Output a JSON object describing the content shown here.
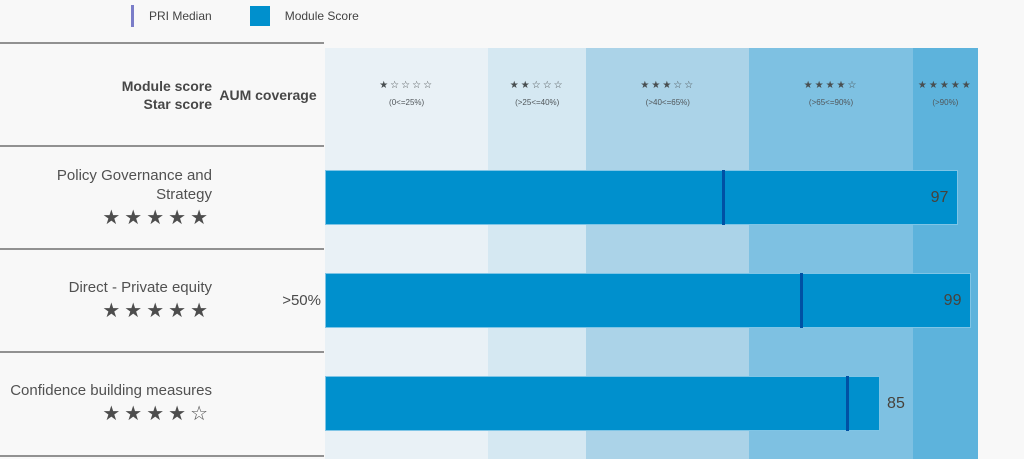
{
  "legend": {
    "pri_median_label": "PRI Median",
    "module_score_label": "Module Score"
  },
  "header": {
    "col_line1": "Module score",
    "col_line2": "Star score",
    "aum_label": "AUM coverage"
  },
  "bands": [
    {
      "stars": "★☆☆☆☆",
      "range": "(0<=25%)",
      "color": "#e9f1f6",
      "width_pct": 25
    },
    {
      "stars": "★★☆☆☆",
      "range": "(>25<=40%)",
      "color": "#d5e8f2",
      "width_pct": 15
    },
    {
      "stars": "★★★☆☆",
      "range": "(>40<=65%)",
      "color": "#abd3e8",
      "width_pct": 25
    },
    {
      "stars": "★★★★☆",
      "range": "(>65<=90%)",
      "color": "#7ec1e2",
      "width_pct": 25
    },
    {
      "stars": "★★★★★",
      "range": "(>90%)",
      "color": "#5db3dc",
      "width_pct": 10
    }
  ],
  "rows": [
    {
      "label": "Policy Governance and Strategy",
      "stars": "★★★★★",
      "aum": "",
      "score": 97,
      "median": 61,
      "label_inside": true
    },
    {
      "label": "Direct - Private equity",
      "stars": "★★★★★",
      "aum": ">50%",
      "score": 99,
      "median": 73,
      "label_inside": true
    },
    {
      "label": "Confidence building measures",
      "stars": "★★★★☆",
      "aum": "",
      "score": 85,
      "median": 80,
      "label_inside": false
    }
  ],
  "colors": {
    "bar": "#0090cd",
    "median_line": "#0051a4",
    "legend_median_line": "#7a7dc8",
    "divider": "#919191",
    "background": "#f8f8f8"
  },
  "chart_data": {
    "type": "bar",
    "orientation": "horizontal",
    "categories": [
      "Policy Governance and Strategy",
      "Direct - Private equity",
      "Confidence building measures"
    ],
    "series": [
      {
        "name": "Module Score",
        "values": [
          97,
          99,
          85
        ]
      },
      {
        "name": "PRI Median",
        "values": [
          61,
          73,
          80
        ]
      }
    ],
    "star_scores": [
      5,
      5,
      4
    ],
    "aum_coverage": [
      null,
      ">50%",
      null
    ],
    "xlim": [
      0,
      100
    ],
    "bands": [
      {
        "label": "1 star",
        "range": "(0<=25%)",
        "from": 0,
        "to": 25
      },
      {
        "label": "2 stars",
        "range": "(>25<=40%)",
        "from": 25,
        "to": 40
      },
      {
        "label": "3 stars",
        "range": "(>40<=65%)",
        "from": 40,
        "to": 65
      },
      {
        "label": "4 stars",
        "range": "(>65<=90%)",
        "from": 65,
        "to": 90
      },
      {
        "label": "5 stars",
        "range": "(>90%)",
        "from": 90,
        "to": 100
      }
    ],
    "legend_position": "top",
    "grid": false,
    "title": ""
  }
}
